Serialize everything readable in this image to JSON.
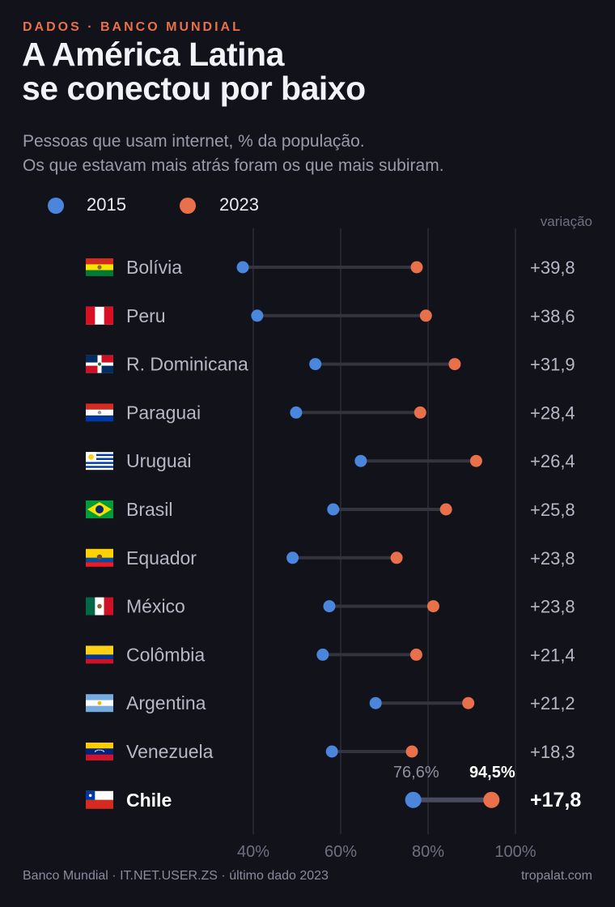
{
  "kicker": "DADOS · BANCO MUNDIAL",
  "title_line1": "A América Latina",
  "title_line2": "se conectou por baixo",
  "subtitle_line1": "Pessoas que usam internet, % da população.",
  "subtitle_line2": "Os que estavam mais atrás foram os que mais subiram.",
  "legend": [
    {
      "label": "2015",
      "color": "#4a86dc"
    },
    {
      "label": "2023",
      "color": "#e8704a"
    }
  ],
  "variation_header": "variação",
  "footer_source": "Banco Mundial · IT.NET.USER.ZS · último dado 2023",
  "footer_brand": "tropalat.com",
  "chart_data": {
    "type": "dumbbell",
    "x_ticks": [
      "40%",
      "60%",
      "80%",
      "100%"
    ],
    "x_tick_values": [
      40,
      60,
      80,
      100
    ],
    "xlim": [
      40,
      100
    ],
    "grid": "vertical",
    "highlight": "Chile",
    "highlight_labels": {
      "v2015": "76,6%",
      "v2023": "94,5%"
    },
    "rows": [
      {
        "country": "Bolívia",
        "flag": "bolivia",
        "v2015": 37.6,
        "v2023": 77.4,
        "change": "+39,8"
      },
      {
        "country": "Peru",
        "flag": "peru",
        "v2015": 40.9,
        "v2023": 79.5,
        "change": "+38,6"
      },
      {
        "country": "R. Dominicana",
        "flag": "dominican",
        "v2015": 54.2,
        "v2023": 86.1,
        "change": "+31,9"
      },
      {
        "country": "Paraguai",
        "flag": "paraguay",
        "v2015": 49.8,
        "v2023": 78.2,
        "change": "+28,4"
      },
      {
        "country": "Uruguai",
        "flag": "uruguay",
        "v2015": 64.6,
        "v2023": 91.0,
        "change": "+26,4"
      },
      {
        "country": "Brasil",
        "flag": "brazil",
        "v2015": 58.3,
        "v2023": 84.1,
        "change": "+25,8"
      },
      {
        "country": "Equador",
        "flag": "ecuador",
        "v2015": 49.0,
        "v2023": 72.8,
        "change": "+23,8"
      },
      {
        "country": "México",
        "flag": "mexico",
        "v2015": 57.4,
        "v2023": 81.2,
        "change": "+23,8"
      },
      {
        "country": "Colômbia",
        "flag": "colombia",
        "v2015": 55.9,
        "v2023": 77.3,
        "change": "+21,4"
      },
      {
        "country": "Argentina",
        "flag": "argentina",
        "v2015": 68.0,
        "v2023": 89.2,
        "change": "+21,2"
      },
      {
        "country": "Venezuela",
        "flag": "venezuela",
        "v2015": 58.0,
        "v2023": 76.3,
        "change": "+18,3"
      },
      {
        "country": "Chile",
        "flag": "chile",
        "v2015": 76.6,
        "v2023": 94.5,
        "change": "+17,8"
      }
    ]
  }
}
